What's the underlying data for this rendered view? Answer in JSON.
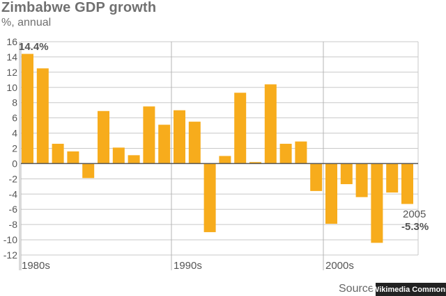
{
  "chart_data": {
    "type": "bar",
    "title": "Zimbabwe GDP growth",
    "subtitle": "%, annual",
    "ylim": [
      -12,
      16
    ],
    "yticks": [
      16,
      14,
      12,
      10,
      8,
      6,
      4,
      2,
      0,
      -2,
      -4,
      -6,
      -8,
      -10,
      -12
    ],
    "x": [
      1980,
      1981,
      1982,
      1983,
      1984,
      1985,
      1986,
      1987,
      1988,
      1989,
      1990,
      1991,
      1992,
      1993,
      1994,
      1995,
      1996,
      1997,
      1998,
      1999,
      2000,
      2001,
      2002,
      2003,
      2004,
      2005
    ],
    "values": [
      14.4,
      12.5,
      2.6,
      1.6,
      -1.9,
      6.9,
      2.1,
      1.1,
      7.5,
      5.1,
      7.0,
      5.5,
      -9.0,
      1.0,
      9.3,
      0.2,
      10.4,
      2.6,
      2.9,
      -3.6,
      -7.9,
      -2.7,
      -4.4,
      -10.4,
      -3.8,
      -5.3
    ],
    "decade_labels": [
      {
        "year": 1980,
        "label": "1980s"
      },
      {
        "year": 1990,
        "label": "1990s"
      },
      {
        "year": 2000,
        "label": "2000s"
      }
    ],
    "grid": true,
    "bar_color": "#f7ac1c",
    "annotations": {
      "first_value": "14.4%",
      "last_year": "2005",
      "last_value": "-5.3%"
    }
  },
  "source_label": "Source",
  "watermark": "Wikimedia Commons"
}
